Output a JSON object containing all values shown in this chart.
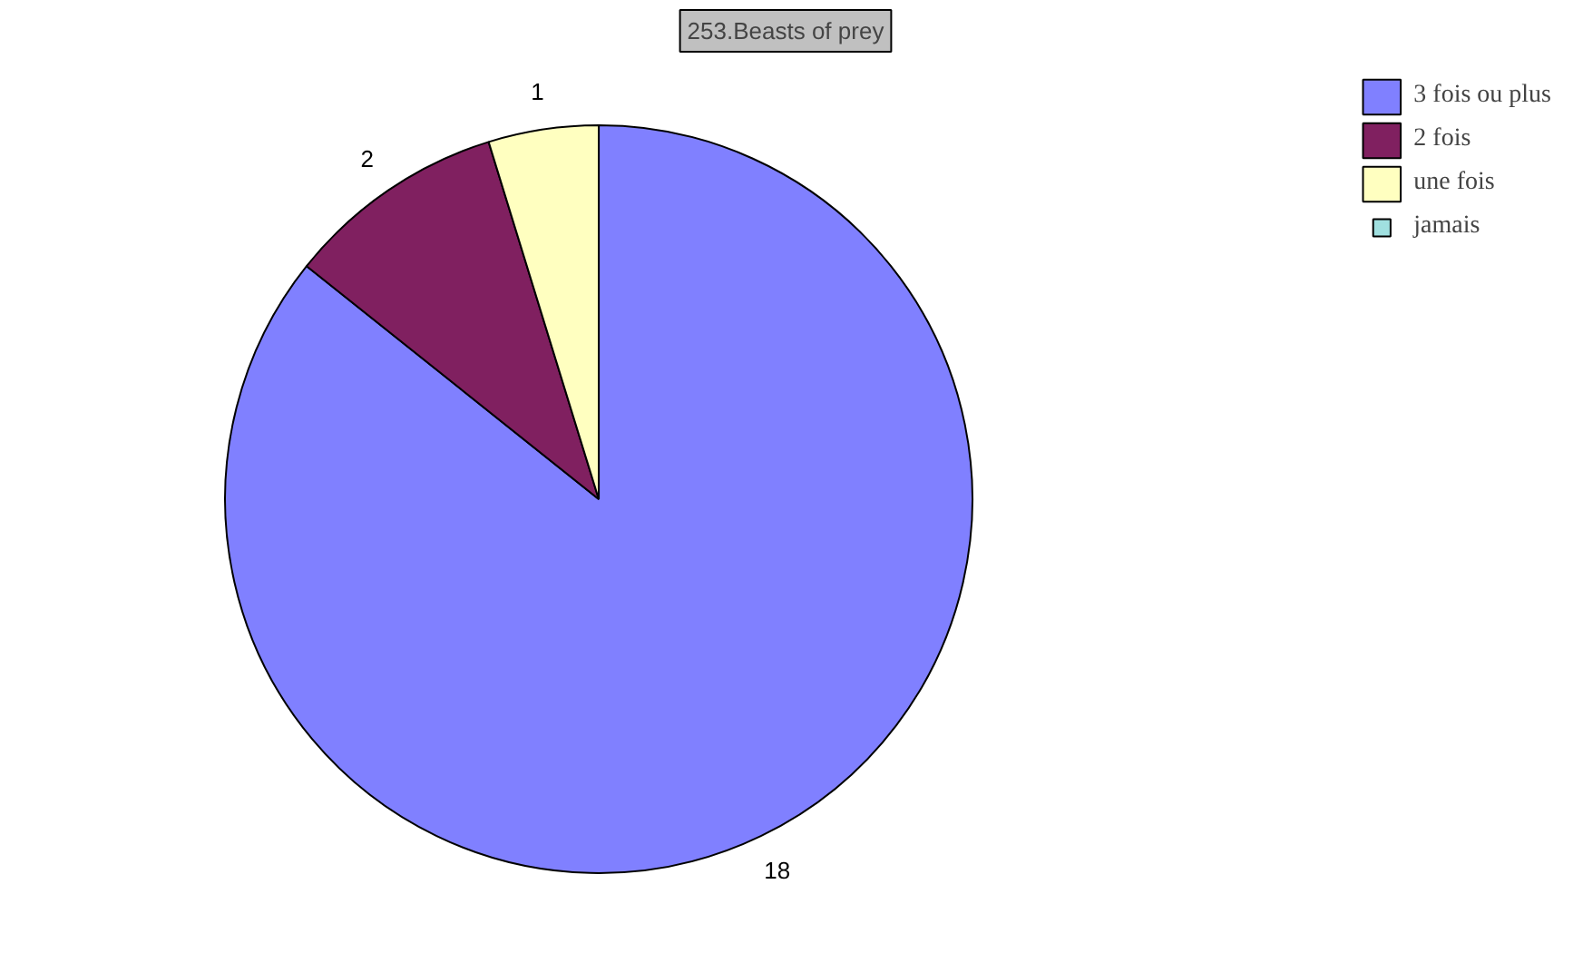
{
  "chart_data": {
    "type": "pie",
    "title": "253.Beasts of prey",
    "categories": [
      "3 fois ou plus",
      "2 fois",
      "une fois",
      "jamais"
    ],
    "values": [
      18,
      2,
      1,
      0
    ],
    "colors": [
      "#8080ff",
      "#802060",
      "#ffffc0",
      "#a0e0e0"
    ],
    "value_labels": [
      "18",
      "2",
      "1",
      null
    ],
    "legend": "top right"
  }
}
